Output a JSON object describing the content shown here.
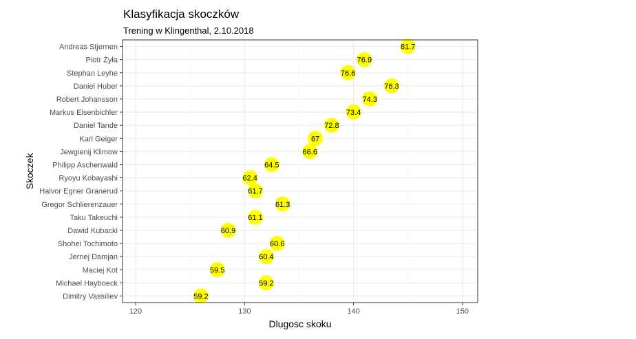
{
  "chart_data": {
    "type": "scatter",
    "title": "Klasyfikacja skoczków",
    "subtitle": "Trening w Klingenthal, 2.10.2018",
    "xlabel": "Dlugosc skoku",
    "ylabel": "Skoczek",
    "xlim": [
      118.8,
      151.4
    ],
    "x_ticks": [
      120,
      130,
      140,
      150
    ],
    "grid": true,
    "point_color": "#ffff00",
    "points": [
      {
        "name": "Andreas Stjernen",
        "distance": 145.0,
        "label": "81.7"
      },
      {
        "name": "Piotr Żyła",
        "distance": 141.0,
        "label": "76.9"
      },
      {
        "name": "Stephan Leyhe",
        "distance": 139.5,
        "label": "76.6"
      },
      {
        "name": "Daniel Huber",
        "distance": 143.5,
        "label": "76.3"
      },
      {
        "name": "Robert Johansson",
        "distance": 141.5,
        "label": "74.3"
      },
      {
        "name": "Markus Eisenbichler",
        "distance": 140.0,
        "label": "73.4"
      },
      {
        "name": "Daniel Tande",
        "distance": 138.0,
        "label": "72.8"
      },
      {
        "name": "Karl Geiger",
        "distance": 136.5,
        "label": "67"
      },
      {
        "name": "Jewgienij Klimow",
        "distance": 136.0,
        "label": "66.6"
      },
      {
        "name": "Philipp Aschenwald",
        "distance": 132.5,
        "label": "64.5"
      },
      {
        "name": "Ryoyu Kobayashi",
        "distance": 130.5,
        "label": "62.4"
      },
      {
        "name": "Halvor Egner Granerud",
        "distance": 131.0,
        "label": "61.7"
      },
      {
        "name": "Gregor Schlierenzauer",
        "distance": 133.5,
        "label": "61.3"
      },
      {
        "name": "Taku Takeuchi",
        "distance": 131.0,
        "label": "61.1"
      },
      {
        "name": "Dawid Kubacki",
        "distance": 128.5,
        "label": "60.9"
      },
      {
        "name": "Shohei Tochimoto",
        "distance": 133.0,
        "label": "60.6"
      },
      {
        "name": "Jernej Damjan",
        "distance": 132.0,
        "label": "60.4"
      },
      {
        "name": "Maciej Kot",
        "distance": 127.5,
        "label": "59.5"
      },
      {
        "name": "Michael Hayboeck",
        "distance": 132.0,
        "label": "59.2"
      },
      {
        "name": "Dimitry Vassiliev",
        "distance": 126.0,
        "label": "59.2"
      }
    ]
  }
}
